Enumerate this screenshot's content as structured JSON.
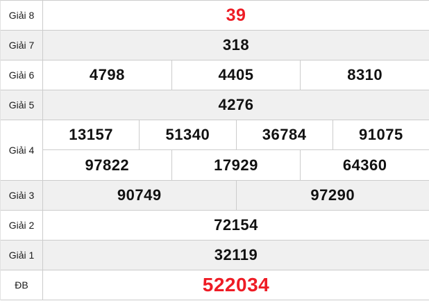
{
  "colors": {
    "highlight_red": "#ee1c25",
    "alt_row_bg": "#f0f0f0",
    "border": "#cccccc"
  },
  "table": {
    "rows": [
      {
        "label": "Giải 8",
        "numbers": [
          "39"
        ],
        "highlight": true
      },
      {
        "label": "Giải 7",
        "numbers": [
          "318"
        ]
      },
      {
        "label": "Giải 6",
        "numbers": [
          "4798",
          "4405",
          "8310"
        ]
      },
      {
        "label": "Giải 5",
        "numbers": [
          "4276"
        ]
      },
      {
        "label": "Giải 4",
        "numbers_top": [
          "13157",
          "51340",
          "36784",
          "91075"
        ],
        "numbers_bottom": [
          "97822",
          "17929",
          "64360"
        ]
      },
      {
        "label": "Giải 3",
        "numbers": [
          "90749",
          "97290"
        ]
      },
      {
        "label": "Giải 2",
        "numbers": [
          "72154"
        ]
      },
      {
        "label": "Giải 1",
        "numbers": [
          "32119"
        ]
      },
      {
        "label": "ĐB",
        "numbers": [
          "522034"
        ],
        "highlight": true
      }
    ]
  }
}
